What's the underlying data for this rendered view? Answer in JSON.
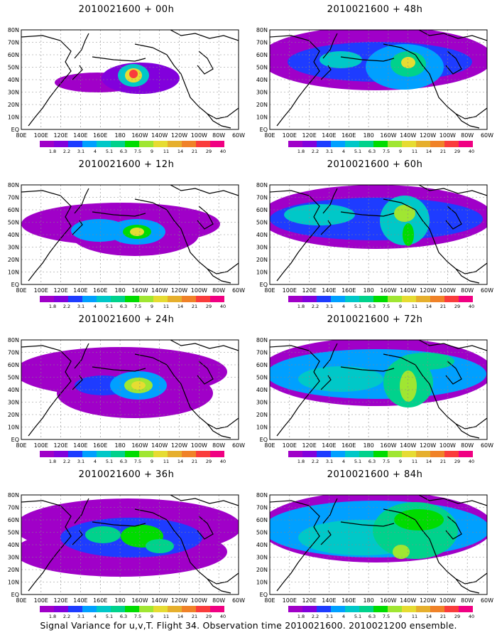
{
  "panels": [
    {
      "title": "2010021600 + 00h",
      "blobs": [
        {
          "cx": 127,
          "cy": 114,
          "rx": 60,
          "ry": 14,
          "lvl": 0
        },
        {
          "cx": 188,
          "cy": 108,
          "rx": 55,
          "ry": 22,
          "lvl": 1
        },
        {
          "cx": 178,
          "cy": 104,
          "rx": 22,
          "ry": 16,
          "lvl": 4
        },
        {
          "cx": 178,
          "cy": 104,
          "rx": 12,
          "ry": 10,
          "lvl": 8
        },
        {
          "cx": 178,
          "cy": 102,
          "rx": 6,
          "ry": 6,
          "lvl": 11
        }
      ]
    },
    {
      "title": "2010021600 + 12h",
      "blobs": [
        {
          "cx": 160,
          "cy": 95,
          "rx": 140,
          "ry": 30,
          "lvl": 0
        },
        {
          "cx": 180,
          "cy": 110,
          "rx": 90,
          "ry": 30,
          "lvl": 0
        },
        {
          "cx": 130,
          "cy": 104,
          "rx": 40,
          "ry": 16,
          "lvl": 3
        },
        {
          "cx": 183,
          "cy": 106,
          "rx": 40,
          "ry": 18,
          "lvl": 3
        },
        {
          "cx": 183,
          "cy": 106,
          "rx": 20,
          "ry": 10,
          "lvl": 6
        },
        {
          "cx": 183,
          "cy": 106,
          "rx": 10,
          "ry": 6,
          "lvl": 8
        }
      ]
    },
    {
      "title": "2010021600 + 24h",
      "blobs": [
        {
          "cx": 160,
          "cy": 85,
          "rx": 150,
          "ry": 35,
          "lvl": 0
        },
        {
          "cx": 180,
          "cy": 115,
          "rx": 110,
          "ry": 35,
          "lvl": 0
        },
        {
          "cx": 135,
          "cy": 104,
          "rx": 40,
          "ry": 14,
          "lvl": 2
        },
        {
          "cx": 185,
          "cy": 104,
          "rx": 40,
          "ry": 20,
          "lvl": 3
        },
        {
          "cx": 185,
          "cy": 104,
          "rx": 20,
          "ry": 11,
          "lvl": 7
        },
        {
          "cx": 185,
          "cy": 104,
          "rx": 10,
          "ry": 6,
          "lvl": 8
        }
      ]
    },
    {
      "title": "2010021600 + 36h",
      "blobs": [
        {
          "cx": 170,
          "cy": 85,
          "rx": 160,
          "ry": 40,
          "lvl": 0
        },
        {
          "cx": 160,
          "cy": 120,
          "rx": 150,
          "ry": 35,
          "lvl": 0
        },
        {
          "cx": 175,
          "cy": 100,
          "rx": 100,
          "ry": 28,
          "lvl": 2
        },
        {
          "cx": 135,
          "cy": 96,
          "rx": 25,
          "ry": 12,
          "lvl": 5
        },
        {
          "cx": 190,
          "cy": 98,
          "rx": 30,
          "ry": 16,
          "lvl": 6
        },
        {
          "cx": 215,
          "cy": 112,
          "rx": 20,
          "ry": 10,
          "lvl": 5
        }
      ]
    },
    {
      "title": "2010021600 + 48h",
      "blobs": [
        {
          "cx": 170,
          "cy": 80,
          "rx": 165,
          "ry": 45,
          "lvl": 0
        },
        {
          "cx": 175,
          "cy": 85,
          "rx": 130,
          "ry": 28,
          "lvl": 2
        },
        {
          "cx": 210,
          "cy": 92,
          "rx": 55,
          "ry": 32,
          "lvl": 3
        },
        {
          "cx": 120,
          "cy": 82,
          "rx": 30,
          "ry": 12,
          "lvl": 4
        },
        {
          "cx": 215,
          "cy": 88,
          "rx": 25,
          "ry": 18,
          "lvl": 5
        },
        {
          "cx": 215,
          "cy": 86,
          "rx": 10,
          "ry": 8,
          "lvl": 8
        }
      ]
    },
    {
      "title": "2010021600 + 60h",
      "blobs": [
        {
          "cx": 170,
          "cy": 85,
          "rx": 165,
          "ry": 45,
          "lvl": 0
        },
        {
          "cx": 170,
          "cy": 88,
          "rx": 150,
          "ry": 30,
          "lvl": 2
        },
        {
          "cx": 90,
          "cy": 82,
          "rx": 50,
          "ry": 15,
          "lvl": 4
        },
        {
          "cx": 210,
          "cy": 90,
          "rx": 35,
          "ry": 35,
          "lvl": 4
        },
        {
          "cx": 210,
          "cy": 80,
          "rx": 15,
          "ry": 12,
          "lvl": 7
        },
        {
          "cx": 215,
          "cy": 110,
          "rx": 8,
          "ry": 16,
          "lvl": 6
        }
      ]
    },
    {
      "title": "2010021600 + 72h",
      "blobs": [
        {
          "cx": 170,
          "cy": 85,
          "rx": 165,
          "ry": 48,
          "lvl": 0
        },
        {
          "cx": 170,
          "cy": 88,
          "rx": 155,
          "ry": 35,
          "lvl": 3
        },
        {
          "cx": 120,
          "cy": 95,
          "rx": 60,
          "ry": 18,
          "lvl": 4
        },
        {
          "cx": 215,
          "cy": 100,
          "rx": 35,
          "ry": 35,
          "lvl": 5
        },
        {
          "cx": 215,
          "cy": 105,
          "rx": 12,
          "ry": 22,
          "lvl": 7
        },
        {
          "cx": 240,
          "cy": 70,
          "rx": 40,
          "ry": 12,
          "lvl": 5
        }
      ]
    },
    {
      "title": "2010021600 + 84h",
      "blobs": [
        {
          "cx": 170,
          "cy": 85,
          "rx": 165,
          "ry": 50,
          "lvl": 0
        },
        {
          "cx": 170,
          "cy": 88,
          "rx": 160,
          "ry": 40,
          "lvl": 3
        },
        {
          "cx": 150,
          "cy": 100,
          "rx": 90,
          "ry": 25,
          "lvl": 4
        },
        {
          "cx": 225,
          "cy": 90,
          "rx": 60,
          "ry": 40,
          "lvl": 5
        },
        {
          "cx": 230,
          "cy": 75,
          "rx": 35,
          "ry": 15,
          "lvl": 6
        },
        {
          "cx": 205,
          "cy": 120,
          "rx": 12,
          "ry": 10,
          "lvl": 7
        }
      ]
    }
  ],
  "lat_labels": [
    "80N",
    "70N",
    "60N",
    "50N",
    "40N",
    "30N",
    "20N",
    "10N",
    "EQ"
  ],
  "lon_labels": [
    "80E",
    "100E",
    "120E",
    "140E",
    "160E",
    "180",
    "160W",
    "140W",
    "120W",
    "100W",
    "80W",
    "60W"
  ],
  "colorbar": {
    "labels": [
      "1.8",
      "2.2",
      "3.1",
      "4",
      "5.1",
      "6.3",
      "7.5",
      "9",
      "11",
      "14",
      "21",
      "29",
      "40"
    ],
    "colors": [
      "#a000c8",
      "#8200dc",
      "#1e3cff",
      "#00a0ff",
      "#00c8c8",
      "#00d28c",
      "#00dc00",
      "#a0e632",
      "#e6dc32",
      "#e6af2d",
      "#f08228",
      "#fa3c3c",
      "#f00082"
    ]
  },
  "footer": "Signal Variance for u,v,T. Flight 34. Observation time 2010021600. 2010021200 ensemble."
}
